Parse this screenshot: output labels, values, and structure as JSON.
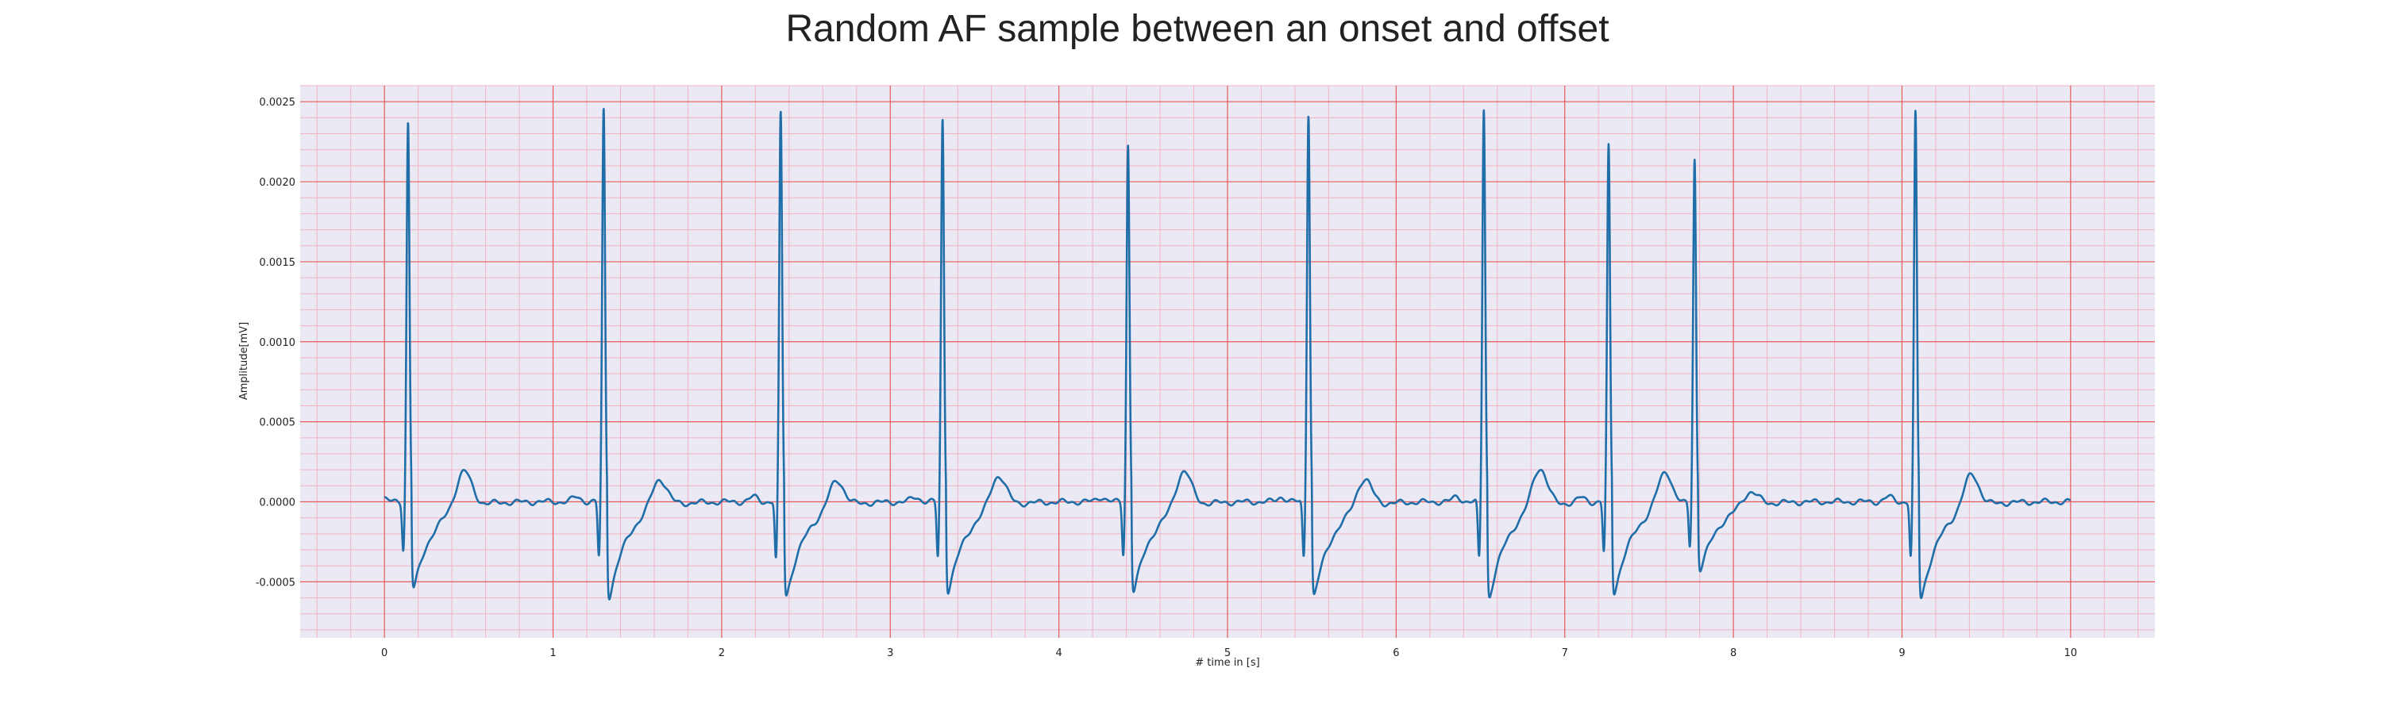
{
  "chart_data": {
    "type": "line",
    "title": "Random AF sample between an onset and offset",
    "xlabel": "# time in [s]",
    "ylabel": "Amplitude[mV]",
    "xlim": [
      -0.5,
      10.5
    ],
    "ylim": [
      -0.00085,
      0.0026
    ],
    "x_ticks": [
      0,
      1,
      2,
      3,
      4,
      5,
      6,
      7,
      8,
      9,
      10
    ],
    "x_tick_labels": [
      "0",
      "1",
      "2",
      "3",
      "4",
      "5",
      "6",
      "7",
      "8",
      "9",
      "10"
    ],
    "y_ticks": [
      -0.0005,
      0.0,
      0.0005,
      0.001,
      0.0015,
      0.002,
      0.0025
    ],
    "y_tick_labels": [
      "-0.0005",
      "0.0000",
      "0.0005",
      "0.0010",
      "0.0015",
      "0.0020",
      "0.0025"
    ],
    "grid": true,
    "beats": [
      {
        "r_time": 0.14,
        "r_peak": 0.00237,
        "q_depth": -0.0003,
        "s_depth": -0.00062,
        "t_peak": 0.00017
      },
      {
        "r_time": 1.3,
        "r_peak": 0.00245,
        "q_depth": -0.00035,
        "s_depth": -0.00068,
        "t_peak": 0.00012
      },
      {
        "r_time": 2.35,
        "r_peak": 0.00243,
        "q_depth": -0.00037,
        "s_depth": -0.00067,
        "t_peak": 0.00011
      },
      {
        "r_time": 3.31,
        "r_peak": 0.00239,
        "q_depth": -0.00035,
        "s_depth": -0.00064,
        "t_peak": 0.00014
      },
      {
        "r_time": 4.41,
        "r_peak": 0.00223,
        "q_depth": -0.00033,
        "s_depth": -0.00064,
        "t_peak": 0.00017
      },
      {
        "r_time": 5.48,
        "r_peak": 0.00243,
        "q_depth": -0.00035,
        "s_depth": -0.00067,
        "t_peak": 0.00012
      },
      {
        "r_time": 6.52,
        "r_peak": 0.00246,
        "q_depth": -0.00036,
        "s_depth": -0.00068,
        "t_peak": 0.00019
      },
      {
        "r_time": 7.26,
        "r_peak": 0.00222,
        "q_depth": -0.00032,
        "s_depth": -0.00065,
        "t_peak": 0.00014
      },
      {
        "r_time": 7.77,
        "r_peak": 0.00215,
        "q_depth": -0.00027,
        "s_depth": -0.00048,
        "t_peak": 3e-05
      },
      {
        "r_time": 9.08,
        "r_peak": 0.00243,
        "q_depth": -0.00035,
        "s_depth": -0.00069,
        "t_peak": 0.00015
      }
    ],
    "series": [
      {
        "start_time": 0.0,
        "end_time": 10.0,
        "baseline": 0.0,
        "color": "#1f6ea8"
      }
    ],
    "colors": {
      "plot_background": "#eae9f4",
      "major_grid": "#e85a5a",
      "minor_grid": "#f2b4c2",
      "line": "#1f6ea8"
    }
  }
}
